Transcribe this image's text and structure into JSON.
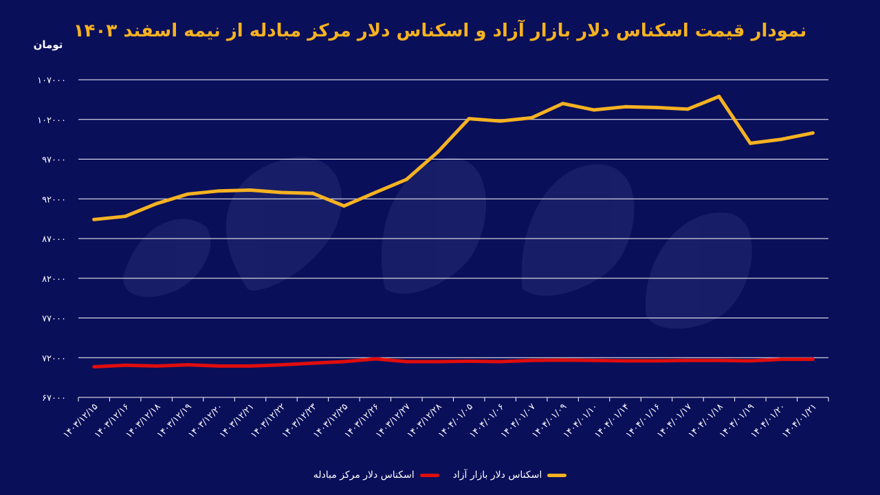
{
  "chart_data": {
    "type": "line",
    "title": "نمودار قیمت اسکناس دلار بازار آزاد و اسکناس دلار مرکز مبادله از نیمه اسفند ۱۴۰۳",
    "ylabel": "تومان",
    "xlabel": "",
    "ylim": [
      67000,
      107000
    ],
    "yticks": [
      "۶۷۰۰۰",
      "۷۲۰۰۰",
      "۷۷۰۰۰",
      "۸۲۰۰۰",
      "۸۷۰۰۰",
      "۹۲۰۰۰",
      "۹۷۰۰۰",
      "۱۰۲۰۰۰",
      "۱۰۷۰۰۰"
    ],
    "ytick_values": [
      67000,
      72000,
      77000,
      82000,
      87000,
      92000,
      97000,
      102000,
      107000
    ],
    "categories": [
      "۱۴۰۳/۱۲/۱۵",
      "۱۴۰۳/۱۲/۱۶",
      "۱۴۰۳/۱۲/۱۸",
      "۱۴۰۳/۱۲/۱۹",
      "۱۴۰۳/۱۲/۲۰",
      "۱۴۰۳/۱۲/۲۱",
      "۱۴۰۳/۱۲/۲۲",
      "۱۴۰۳/۱۲/۲۳",
      "۱۴۰۳/۱۲/۲۵",
      "۱۴۰۳/۱۲/۲۶",
      "۱۴۰۳/۱۲/۲۷",
      "۱۴۰۳/۱۲/۲۸",
      "۱۴۰۴/۰۱/۰۵",
      "۱۴۰۴/۰۱/۰۶",
      "۱۴۰۴/۰۱/۰۷",
      "۱۴۰۴/۰۱/۰۹",
      "۱۴۰۴/۰۱/۱۰",
      "۱۴۰۴/۰۱/۱۴",
      "۱۴۰۴/۰۱/۱۶",
      "۱۴۰۴/۰۱/۱۷",
      "۱۴۰۴/۰۱/۱۸",
      "۱۴۰۴/۰۱/۱۹",
      "۱۴۰۴/۰۱/۲۰",
      "۱۴۰۴/۰۱/۲۱"
    ],
    "series": [
      {
        "name": "اسکناس دلار مرکز مبادله",
        "color": "#e00d0d",
        "values": [
          70850,
          71050,
          70950,
          71100,
          70950,
          70950,
          71100,
          71300,
          71500,
          71850,
          71500,
          71500,
          71550,
          71500,
          71650,
          71700,
          71650,
          71600,
          71600,
          71650,
          71650,
          71600,
          71800,
          71800
        ]
      },
      {
        "name": "اسکناس دلار بازار آزاد",
        "color": "#f6b221",
        "values": [
          89400,
          89800,
          91400,
          92600,
          93000,
          93100,
          92800,
          92700,
          91100,
          92800,
          94450,
          97900,
          102100,
          101800,
          102200,
          104000,
          103200,
          103600,
          103500,
          103300,
          104900,
          99000,
          99500,
          100300
        ]
      }
    ],
    "grid": true,
    "legend_position": "bottom-center"
  }
}
